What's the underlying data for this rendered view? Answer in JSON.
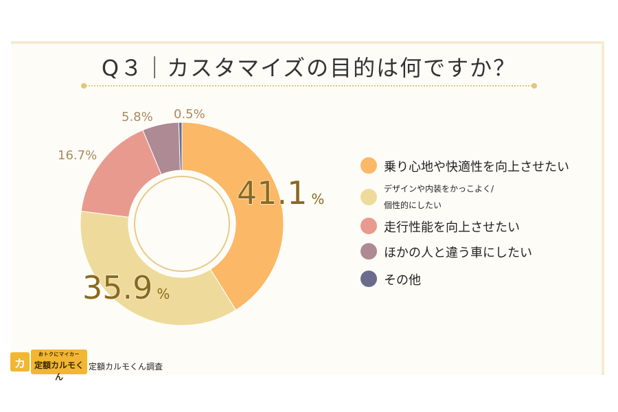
{
  "title": "Q３｜カスタマイズの目的は何ですか？",
  "chart_data": {
    "type": "pie",
    "variant": "donut",
    "unit": "%",
    "start_angle_deg": 0,
    "direction": "clockwise",
    "categories": [
      "乗り心地や快適性を向上させたい",
      "デザインや内装をかっこよく/個性的にしたい",
      "走行性能を向上させたい",
      "ほかの人と違う車にしたい",
      "その他"
    ],
    "values": [
      41.1,
      35.9,
      16.7,
      5.8,
      0.5
    ],
    "value_labels": [
      "41.1",
      "35.9",
      "16.7%",
      "5.8%",
      "0.5%"
    ],
    "colors": [
      "#fbb867",
      "#eedb9c",
      "#e99a8e",
      "#ad8a94",
      "#6b6b8c"
    ],
    "legend_position": "right"
  },
  "legend": {
    "items": [
      {
        "lines": [
          "乗り心地や快適性を向上させたい"
        ],
        "color": "#fbb867"
      },
      {
        "lines": [
          "デザインや内装をかっこよく/",
          "個性的にしたい"
        ],
        "color": "#eedb9c"
      },
      {
        "lines": [
          "走行性能を向上させたい"
        ],
        "color": "#e99a8e"
      },
      {
        "lines": [
          "ほかの人と違う車にしたい"
        ],
        "color": "#ad8a94"
      },
      {
        "lines": [
          "その他"
        ],
        "color": "#6b6b8c"
      }
    ]
  },
  "big_label_suffix": "%",
  "brand": {
    "tagline": "おトクにマイカー",
    "name": "定額カルモくん",
    "logo_text": "カ"
  },
  "source": "定額カルモくん調査"
}
